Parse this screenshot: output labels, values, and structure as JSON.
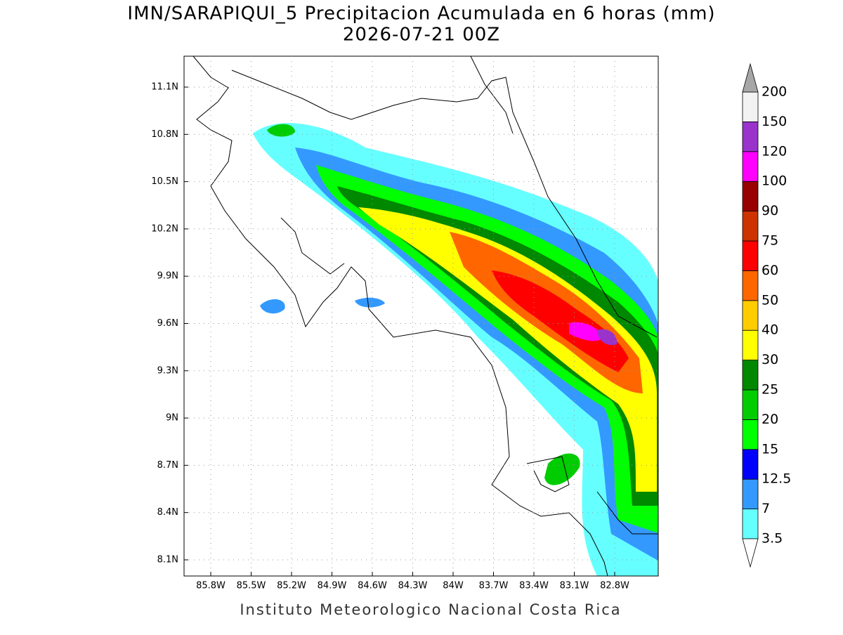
{
  "header": {
    "title": "IMN/SARAPIQUI_5 Precipitacion Acumulada en 6 horas (mm)",
    "subtitle": "2026-07-21 00Z"
  },
  "map": {
    "lat_ticks": [
      "11.1N",
      "10.8N",
      "10.5N",
      "10.2N",
      "9.9N",
      "9.6N",
      "9.3N",
      "9N",
      "8.7N",
      "8.4N",
      "8.1N"
    ],
    "lon_ticks": [
      "85.8W",
      "85.5W",
      "85.2W",
      "84.9W",
      "84.6W",
      "84.3W",
      "84W",
      "83.7W",
      "83.4W",
      "83.1W",
      "82.8W"
    ]
  },
  "colorbar": {
    "levels": [
      3.5,
      7,
      12.5,
      15,
      20,
      25,
      30,
      40,
      50,
      60,
      75,
      90,
      100,
      120,
      150,
      200
    ],
    "colors": [
      "#ffffff",
      "#66ffff",
      "#3399ff",
      "#0000ff",
      "#00ff00",
      "#00cc00",
      "#008800",
      "#ffff00",
      "#ffcc00",
      "#ff6600",
      "#ff0000",
      "#cc3300",
      "#990000",
      "#ff00ff",
      "#9933cc",
      "#f2f2f2",
      "#a6a6a6"
    ]
  },
  "footer": "Instituto Meteorologico Nacional Costa Rica"
}
